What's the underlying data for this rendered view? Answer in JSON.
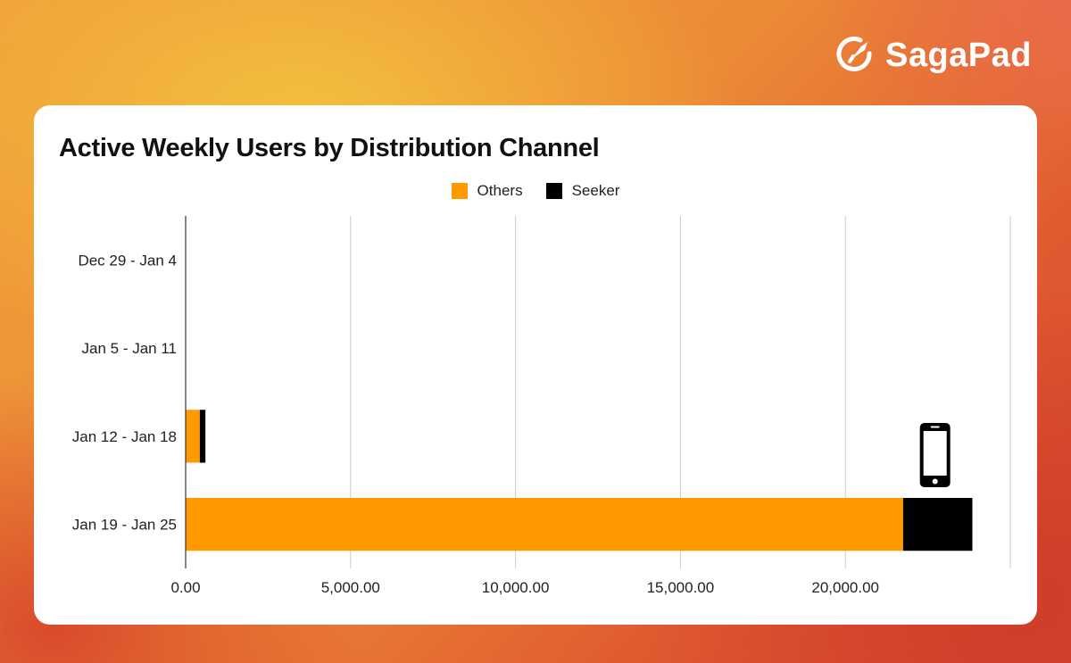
{
  "brand": {
    "name": "SagaPad",
    "icon": "rocket-ring-icon"
  },
  "colors": {
    "others": "#ff9900",
    "seeker": "#000000",
    "grid": "#cccccc"
  },
  "chart_data": {
    "type": "bar",
    "orientation": "horizontal",
    "stacked": true,
    "title": "Active Weekly Users by Distribution Channel",
    "categories": [
      "Dec 29 - Jan 4",
      "Jan 5 - Jan 11",
      "Jan 12 - Jan 18",
      "Jan 19 - Jan 25"
    ],
    "series": [
      {
        "name": "Others",
        "values": [
          0,
          0,
          430,
          21750
        ]
      },
      {
        "name": "Seeker",
        "values": [
          0,
          0,
          170,
          2100
        ]
      }
    ],
    "xlim": [
      0,
      25000
    ],
    "xticks": [
      0,
      5000,
      10000,
      15000,
      20000
    ],
    "xtick_labels": [
      "0.00",
      "5,000.00",
      "10,000.00",
      "15,000.00",
      "20,000.00"
    ],
    "grid": true,
    "legend_position": "top",
    "annotation_icon": "smartphone-icon"
  }
}
